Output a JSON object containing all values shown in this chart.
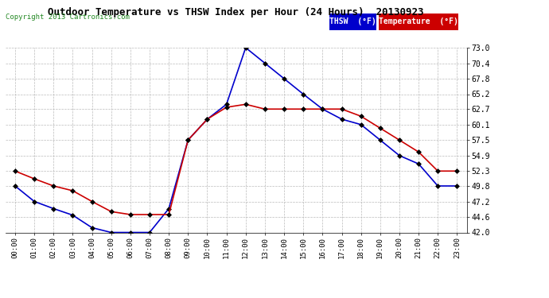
{
  "title": "Outdoor Temperature vs THSW Index per Hour (24 Hours)  20130923",
  "copyright": "Copyright 2013 Cartronics.com",
  "background_color": "#ffffff",
  "plot_bg_color": "#ffffff",
  "grid_color": "#bbbbbb",
  "hours": [
    "00:00",
    "01:00",
    "02:00",
    "03:00",
    "04:00",
    "05:00",
    "06:00",
    "07:00",
    "08:00",
    "09:00",
    "10:00",
    "11:00",
    "12:00",
    "13:00",
    "14:00",
    "15:00",
    "16:00",
    "17:00",
    "18:00",
    "19:00",
    "20:00",
    "21:00",
    "22:00",
    "23:00"
  ],
  "thsw": [
    49.8,
    47.2,
    46.0,
    44.9,
    42.8,
    42.0,
    42.0,
    42.0,
    46.0,
    57.5,
    61.0,
    63.5,
    73.0,
    70.4,
    67.8,
    65.2,
    62.7,
    61.0,
    60.1,
    57.5,
    54.9,
    53.5,
    49.8,
    49.8
  ],
  "temperature": [
    52.3,
    51.0,
    49.8,
    49.0,
    47.2,
    45.5,
    45.0,
    45.0,
    45.0,
    57.5,
    61.0,
    63.0,
    63.5,
    62.7,
    62.7,
    62.7,
    62.7,
    62.7,
    61.5,
    59.5,
    57.5,
    55.5,
    52.3,
    52.3
  ],
  "thsw_color": "#0000cc",
  "temp_color": "#cc0000",
  "ylim_min": 42.0,
  "ylim_max": 73.0,
  "yticks": [
    42.0,
    44.6,
    47.2,
    49.8,
    52.3,
    54.9,
    57.5,
    60.1,
    62.7,
    65.2,
    67.8,
    70.4,
    73.0
  ],
  "marker": "D",
  "markersize": 3,
  "linewidth": 1.2
}
